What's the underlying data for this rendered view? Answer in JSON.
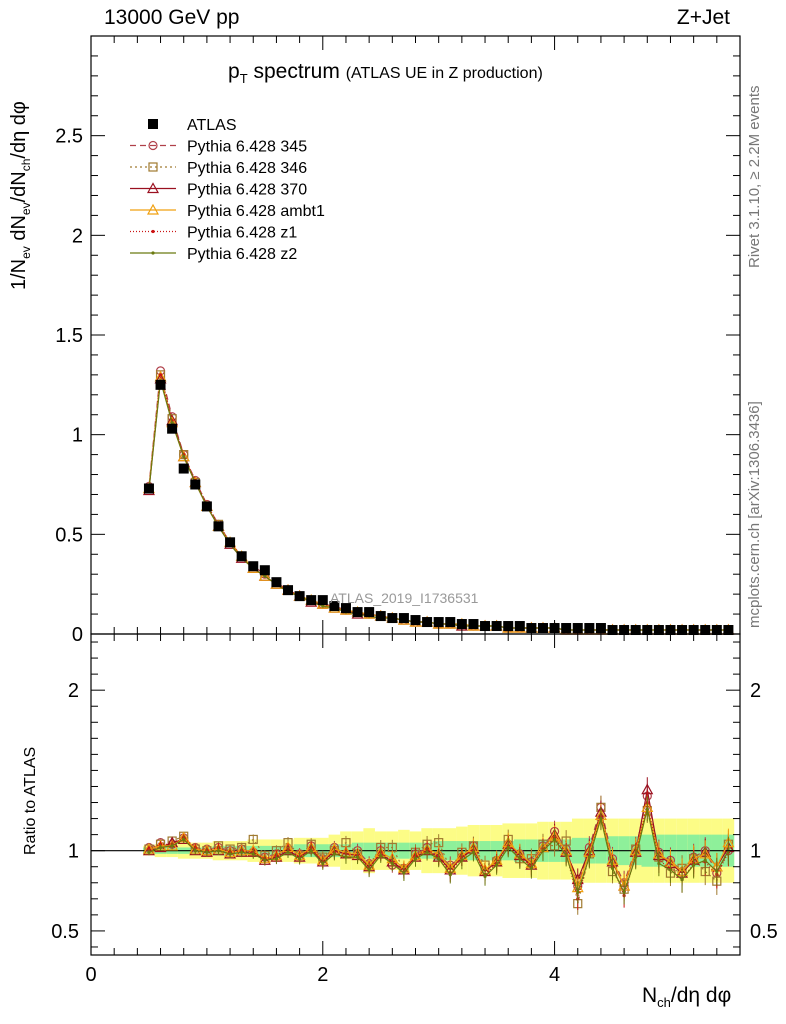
{
  "header": {
    "left": "13000 GeV pp",
    "right": "Z+Jet"
  },
  "title": {
    "main": "p",
    "sub": "T",
    "main2": " spectrum",
    "detail": "(ATLAS UE in Z production)"
  },
  "side_labels": {
    "rivet": "Rivet 3.1.10, ≥ 2.2M events",
    "mcplots": "mcplots.cern.ch [arXiv:1306.3436]"
  },
  "watermark": "ATLAS_2019_I1736531",
  "axes": {
    "ylabel_top": "1/N_ev dN_ev/dN_ch/dη dφ",
    "ylabel_bottom": "Ratio to ATLAS",
    "xlabel": "N_ch/dη dφ"
  },
  "colors": {
    "atlas": "#000000",
    "p345": "#b0404a",
    "p346": "#a07a30",
    "p370": "#9a1020",
    "ambt1": "#f0a010",
    "z1": "#cc1515",
    "z2": "#6b7a10",
    "band_inner": "#8ef09a",
    "band_outer": "#fcfc86"
  },
  "chart_data": {
    "type": "line",
    "x": [
      0.5,
      0.6,
      0.7,
      0.8,
      0.9,
      1.0,
      1.1,
      1.2,
      1.3,
      1.4,
      1.5,
      1.6,
      1.7,
      1.8,
      1.9,
      2.0,
      2.1,
      2.2,
      2.3,
      2.4,
      2.5,
      2.6,
      2.7,
      2.8,
      2.9,
      3.0,
      3.1,
      3.2,
      3.3,
      3.4,
      3.5,
      3.6,
      3.7,
      3.8,
      3.9,
      4.0,
      4.1,
      4.2,
      4.3,
      4.4,
      4.5,
      4.6,
      4.7,
      4.8,
      4.9,
      5.0,
      5.1,
      5.2,
      5.3,
      5.4,
      5.5
    ],
    "main_panel": {
      "xlim": [
        0,
        5.6
      ],
      "ylim": [
        0,
        3.0
      ],
      "y_ticks": [
        0,
        0.5,
        1,
        1.5,
        2,
        2.5
      ],
      "y_tick_labels": [
        "0",
        "0.5",
        "1",
        "1.5",
        "2",
        "2.5"
      ],
      "atlas": [
        0.73,
        1.25,
        1.03,
        0.83,
        0.75,
        0.64,
        0.54,
        0.46,
        0.39,
        0.34,
        0.32,
        0.26,
        0.22,
        0.19,
        0.17,
        0.17,
        0.14,
        0.13,
        0.11,
        0.11,
        0.09,
        0.08,
        0.08,
        0.07,
        0.06,
        0.06,
        0.06,
        0.05,
        0.05,
        0.04,
        0.04,
        0.04,
        0.04,
        0.03,
        0.03,
        0.03,
        0.03,
        0.03,
        0.03,
        0.03,
        0.02,
        0.02,
        0.02,
        0.02,
        0.02,
        0.02,
        0.02,
        0.02,
        0.02,
        0.02,
        0.02
      ]
    },
    "ratio_panel": {
      "ylim": [
        0.35,
        2.35
      ],
      "y_ticks": [
        0.5,
        1,
        2
      ],
      "y_tick_labels": [
        "0.5",
        "1",
        "2"
      ],
      "band_inner": [
        0.02,
        0.02,
        0.02,
        0.02,
        0.02,
        0.02,
        0.03,
        0.03,
        0.03,
        0.03,
        0.03,
        0.03,
        0.03,
        0.04,
        0.04,
        0.04,
        0.04,
        0.04,
        0.05,
        0.05,
        0.05,
        0.05,
        0.05,
        0.05,
        0.05,
        0.06,
        0.06,
        0.06,
        0.06,
        0.06,
        0.06,
        0.06,
        0.07,
        0.07,
        0.07,
        0.07,
        0.07,
        0.08,
        0.08,
        0.08,
        0.09,
        0.09,
        0.09,
        0.1,
        0.1,
        0.1,
        0.1,
        0.1,
        0.1,
        0.1,
        0.1
      ],
      "band_outer": [
        0.03,
        0.04,
        0.04,
        0.05,
        0.05,
        0.05,
        0.06,
        0.06,
        0.06,
        0.07,
        0.07,
        0.07,
        0.07,
        0.08,
        0.08,
        0.08,
        0.1,
        0.12,
        0.12,
        0.14,
        0.12,
        0.12,
        0.13,
        0.12,
        0.14,
        0.14,
        0.14,
        0.15,
        0.16,
        0.16,
        0.16,
        0.17,
        0.17,
        0.17,
        0.18,
        0.18,
        0.18,
        0.2,
        0.2,
        0.2,
        0.2,
        0.2,
        0.2,
        0.2,
        0.2,
        0.2,
        0.2,
        0.2,
        0.2,
        0.2,
        0.2
      ]
    },
    "series": [
      {
        "name": "Pythia 6.428 345",
        "color": "p345",
        "marker": "circle-open",
        "dash": "6,4",
        "values": [
          0.74,
          1.32,
          1.09,
          0.9,
          0.77,
          0.65,
          0.55,
          0.46,
          0.39,
          0.34,
          0.3,
          0.26,
          0.22,
          0.19,
          0.17,
          0.15,
          0.14,
          0.12,
          0.11,
          0.1,
          0.09,
          0.08,
          0.07,
          0.06,
          0.06,
          0.05,
          0.05,
          0.05,
          0.04,
          0.04,
          0.04,
          0.03,
          0.03,
          0.03,
          0.03,
          0.03,
          0.02,
          0.02,
          0.02,
          0.02,
          0.02,
          0.02,
          0.02,
          0.02,
          0.02,
          0.02,
          0.02,
          0.02,
          0.02,
          0.02,
          0.02
        ],
        "ratio": [
          1.02,
          1.05,
          1.04,
          1.08,
          1.02,
          1.01,
          1.02,
          1.0,
          1.01,
          0.99,
          0.96,
          0.98,
          1.01,
          0.98,
          1.03,
          0.95,
          1.02,
          0.98,
          1.0,
          0.92,
          1.0,
          0.91,
          0.89,
          0.98,
          1.02,
          0.97,
          0.91,
          0.96,
          1.03,
          0.87,
          0.94,
          1.04,
          0.98,
          0.93,
          1.03,
          1.12,
          1.01,
          0.78,
          1.02,
          1.27,
          0.95,
          0.8,
          1.01,
          1.34,
          0.99,
          0.94,
          0.87,
          0.96,
          1.0,
          0.86,
          1.0
        ]
      },
      {
        "name": "Pythia 6.428 346",
        "color": "p346",
        "marker": "square-open",
        "dash": "2,3",
        "values": [
          0.73,
          1.3,
          1.08,
          0.9,
          0.76,
          0.64,
          0.55,
          0.46,
          0.39,
          0.33,
          0.29,
          0.25,
          0.22,
          0.19,
          0.17,
          0.15,
          0.13,
          0.12,
          0.11,
          0.1,
          0.09,
          0.08,
          0.07,
          0.06,
          0.06,
          0.05,
          0.05,
          0.04,
          0.04,
          0.04,
          0.04,
          0.03,
          0.03,
          0.03,
          0.03,
          0.03,
          0.02,
          0.02,
          0.02,
          0.02,
          0.02,
          0.02,
          0.02,
          0.02,
          0.02,
          0.02,
          0.02,
          0.02,
          0.02,
          0.02,
          0.02
        ],
        "ratio": [
          1.01,
          1.04,
          1.06,
          1.09,
          1.01,
          1.0,
          1.03,
          1.01,
          1.02,
          1.07,
          0.97,
          1.0,
          1.05,
          0.97,
          1.04,
          0.96,
          1.0,
          1.05,
          0.98,
          0.91,
          1.02,
          1.02,
          0.88,
          0.99,
          1.04,
          1.05,
          0.89,
          0.99,
          1.03,
          0.91,
          0.93,
          1.07,
          0.95,
          0.95,
          1.04,
          1.03,
          1.06,
          0.67,
          0.98,
          1.27,
          0.87,
          0.76,
          1.01,
          1.25,
          0.96,
          0.86,
          0.89,
          0.95,
          0.87,
          0.81,
          1.04
        ]
      },
      {
        "name": "Pythia 6.428 370",
        "color": "p370",
        "marker": "triangle-open",
        "dash": "",
        "values": [
          0.72,
          1.28,
          1.07,
          0.89,
          0.76,
          0.64,
          0.54,
          0.45,
          0.38,
          0.33,
          0.29,
          0.25,
          0.22,
          0.19,
          0.16,
          0.15,
          0.13,
          0.12,
          0.1,
          0.1,
          0.09,
          0.08,
          0.07,
          0.06,
          0.06,
          0.05,
          0.05,
          0.04,
          0.04,
          0.04,
          0.04,
          0.03,
          0.03,
          0.03,
          0.03,
          0.03,
          0.02,
          0.02,
          0.02,
          0.02,
          0.02,
          0.02,
          0.02,
          0.02,
          0.02,
          0.02,
          0.02,
          0.02,
          0.02,
          0.02,
          0.02
        ],
        "ratio": [
          1.0,
          1.02,
          1.05,
          1.07,
          1.0,
          0.99,
          1.0,
          0.98,
          0.99,
          0.99,
          0.94,
          0.96,
          1.0,
          0.96,
          1.01,
          0.93,
          1.0,
          0.98,
          0.97,
          0.9,
          0.98,
          0.93,
          0.88,
          0.96,
          1.0,
          0.96,
          0.88,
          0.96,
          1.01,
          0.87,
          0.93,
          1.04,
          0.97,
          0.91,
          1.02,
          1.1,
          0.99,
          0.82,
          1.0,
          1.24,
          0.93,
          0.78,
          0.99,
          1.38,
          0.97,
          0.92,
          0.86,
          0.94,
          0.99,
          0.9,
          1.02
        ]
      },
      {
        "name": "Pythia 6.428 ambt1",
        "color": "ambt1",
        "marker": "triangle-open",
        "dash": "",
        "values": [
          0.73,
          1.29,
          1.06,
          0.89,
          0.76,
          0.64,
          0.54,
          0.46,
          0.39,
          0.33,
          0.29,
          0.25,
          0.22,
          0.19,
          0.17,
          0.15,
          0.13,
          0.12,
          0.11,
          0.1,
          0.09,
          0.08,
          0.07,
          0.06,
          0.06,
          0.05,
          0.05,
          0.05,
          0.04,
          0.04,
          0.04,
          0.03,
          0.03,
          0.03,
          0.03,
          0.03,
          0.02,
          0.02,
          0.02,
          0.02,
          0.02,
          0.02,
          0.02,
          0.02,
          0.02,
          0.02,
          0.02,
          0.02,
          0.02,
          0.02,
          0.02
        ],
        "ratio": [
          1.01,
          1.03,
          1.03,
          1.08,
          1.01,
          1.0,
          1.01,
          0.99,
          1.0,
          1.0,
          0.95,
          0.97,
          1.02,
          0.97,
          1.02,
          0.94,
          1.01,
          0.99,
          0.98,
          0.91,
          0.99,
          0.95,
          0.89,
          0.97,
          1.01,
          0.98,
          0.89,
          0.97,
          1.02,
          0.88,
          0.94,
          1.05,
          0.98,
          0.92,
          1.02,
          1.09,
          1.0,
          0.77,
          0.99,
          1.22,
          0.94,
          0.78,
          1.0,
          1.27,
          0.98,
          0.93,
          0.87,
          0.95,
          0.98,
          0.9,
          1.05
        ]
      },
      {
        "name": "Pythia 6.428 z1",
        "color": "z1",
        "marker": "dot",
        "dash": "1,2",
        "values": [
          0.73,
          1.3,
          1.07,
          0.9,
          0.77,
          0.65,
          0.55,
          0.46,
          0.39,
          0.33,
          0.29,
          0.25,
          0.22,
          0.19,
          0.17,
          0.15,
          0.13,
          0.12,
          0.11,
          0.1,
          0.09,
          0.08,
          0.07,
          0.06,
          0.06,
          0.05,
          0.05,
          0.04,
          0.04,
          0.04,
          0.04,
          0.03,
          0.03,
          0.03,
          0.03,
          0.03,
          0.02,
          0.02,
          0.02,
          0.02,
          0.02,
          0.02,
          0.02,
          0.02,
          0.02,
          0.02,
          0.02,
          0.02,
          0.02,
          0.02,
          0.02
        ],
        "ratio": [
          1.01,
          1.04,
          1.04,
          1.08,
          1.02,
          1.0,
          1.02,
          0.99,
          1.0,
          0.99,
          0.95,
          0.97,
          1.01,
          0.96,
          1.02,
          0.93,
          0.99,
          0.98,
          0.97,
          0.89,
          0.99,
          0.93,
          0.87,
          0.97,
          1.01,
          0.96,
          0.86,
          0.96,
          1.0,
          0.85,
          0.92,
          1.03,
          0.96,
          0.9,
          1.01,
          1.08,
          0.98,
          0.7,
          0.97,
          1.21,
          0.9,
          0.72,
          0.97,
          1.3,
          0.94,
          0.89,
          0.82,
          0.92,
          0.93,
          0.85,
          0.99
        ]
      },
      {
        "name": "Pythia 6.428 z2",
        "color": "z2",
        "marker": "dot",
        "dash": "",
        "values": [
          0.72,
          1.27,
          1.06,
          0.89,
          0.76,
          0.64,
          0.54,
          0.45,
          0.38,
          0.33,
          0.29,
          0.25,
          0.21,
          0.19,
          0.16,
          0.14,
          0.13,
          0.11,
          0.1,
          0.09,
          0.08,
          0.08,
          0.07,
          0.06,
          0.06,
          0.05,
          0.05,
          0.04,
          0.04,
          0.04,
          0.04,
          0.03,
          0.03,
          0.03,
          0.03,
          0.03,
          0.02,
          0.02,
          0.02,
          0.02,
          0.02,
          0.02,
          0.02,
          0.02,
          0.02,
          0.02,
          0.02,
          0.02,
          0.02,
          0.02,
          0.02
        ],
        "ratio": [
          0.99,
          1.02,
          1.03,
          1.07,
          1.0,
          0.99,
          1.0,
          0.98,
          0.99,
          0.98,
          0.94,
          0.95,
          0.99,
          0.95,
          1.0,
          0.92,
          0.98,
          0.96,
          0.96,
          0.88,
          0.97,
          0.92,
          0.86,
          0.95,
          0.99,
          0.95,
          0.85,
          0.94,
          0.99,
          0.84,
          0.91,
          1.02,
          0.95,
          0.89,
          1.0,
          1.07,
          0.97,
          0.74,
          0.96,
          1.2,
          0.89,
          0.74,
          0.96,
          1.26,
          0.92,
          0.88,
          0.82,
          0.91,
          0.94,
          0.87,
          1.0
        ]
      }
    ],
    "x_ticks": [
      0,
      2,
      4
    ],
    "x_tick_labels": [
      "0",
      "2",
      "4"
    ],
    "legend": {
      "placement": "top-left",
      "entries": [
        "ATLAS",
        "Pythia 6.428 345",
        "Pythia 6.428 346",
        "Pythia 6.428 370",
        "Pythia 6.428 ambt1",
        "Pythia 6.428 z1",
        "Pythia 6.428 z2"
      ]
    }
  }
}
